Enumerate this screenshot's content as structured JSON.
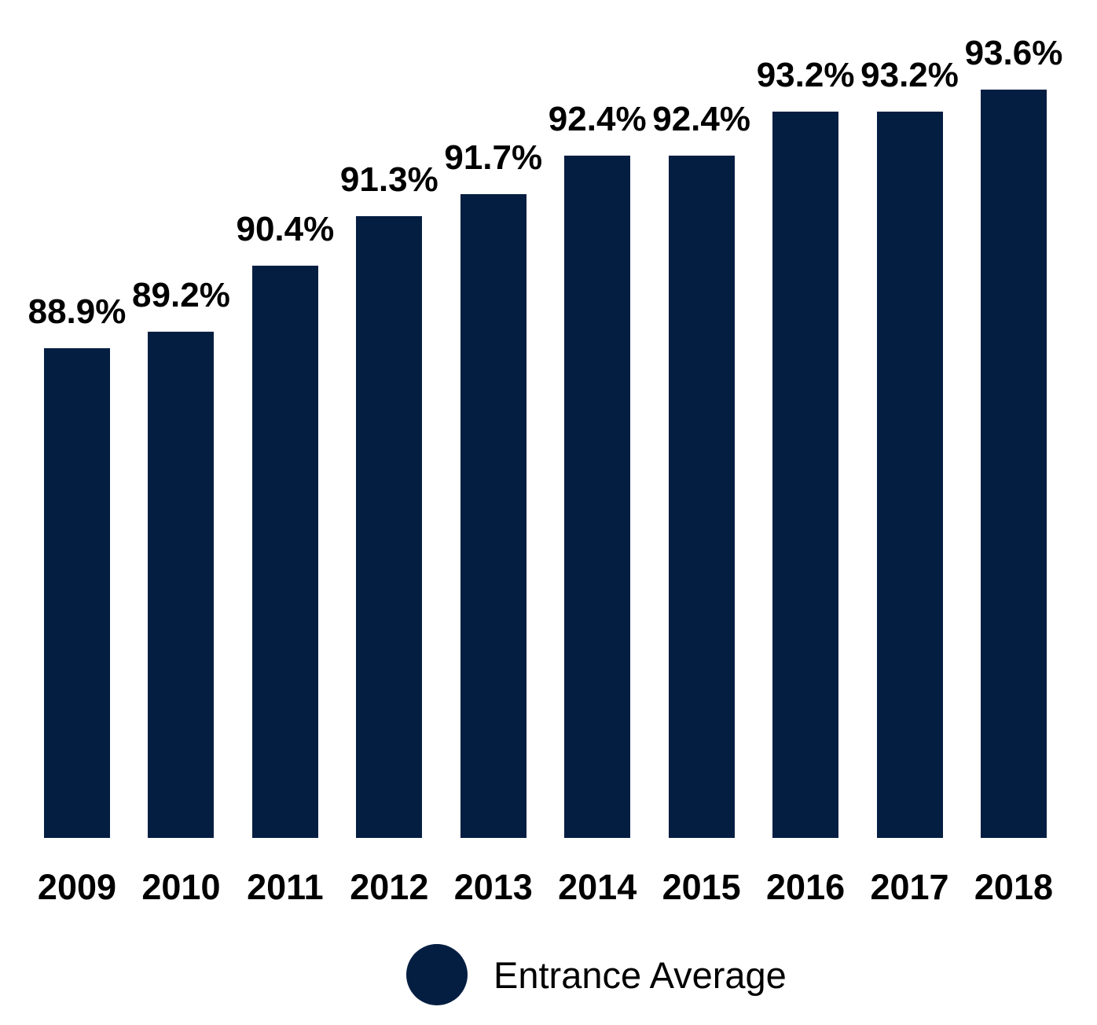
{
  "chart_data": {
    "type": "bar",
    "title": "",
    "xlabel": "",
    "ylabel": "",
    "categories": [
      "2009",
      "2010",
      "2011",
      "2012",
      "2013",
      "2014",
      "2015",
      "2016",
      "2017",
      "2018"
    ],
    "series": [
      {
        "name": "Entrance Average",
        "values": [
          88.9,
          89.2,
          90.4,
          91.3,
          91.7,
          92.4,
          92.4,
          93.2,
          93.2,
          93.6
        ]
      }
    ],
    "value_labels": [
      "88.9%",
      "89.2%",
      "90.4%",
      "91.3%",
      "91.7%",
      "92.4%",
      "92.4%",
      "93.2%",
      "93.2%",
      "93.6%"
    ],
    "unit": "%",
    "ylim": [
      80,
      94.5
    ],
    "grid": false,
    "axes_visible": false,
    "value_labels_position": "above-bars",
    "legend": {
      "label": "Entrance Average",
      "position": "bottom",
      "marker": "circle"
    },
    "colors": {
      "bar": "#041e42",
      "label_text": "#000000",
      "background": "#ffffff"
    }
  }
}
